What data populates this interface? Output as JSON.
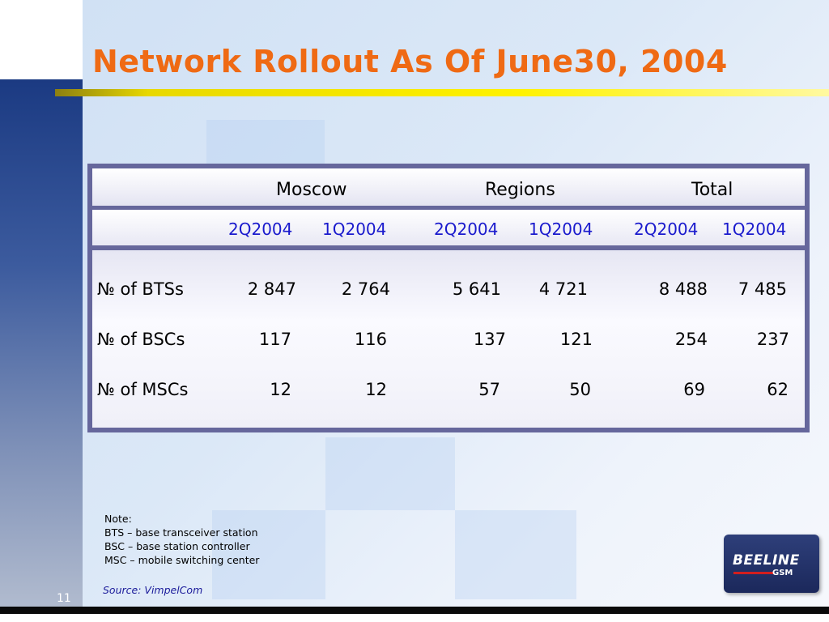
{
  "slide": {
    "title": "Network Rollout As Of June30, 2004",
    "page_number": "11"
  },
  "table": {
    "groups": [
      "Moscow",
      "Regions",
      "Total"
    ],
    "periods": [
      "2Q2004",
      "1Q2004",
      "2Q2004",
      "1Q2004",
      "2Q2004",
      "1Q2004"
    ],
    "rows": [
      {
        "label": "№ of BTSs",
        "values": [
          "2 847",
          "2 764",
          "5 641",
          "4 721",
          "8 488",
          "7 485"
        ]
      },
      {
        "label": "№ of BSCs",
        "values": [
          "117",
          "116",
          "137",
          "121",
          "254",
          "237"
        ]
      },
      {
        "label": "№ of MSCs",
        "values": [
          "12",
          "12",
          "57",
          "50",
          "69",
          "62"
        ]
      }
    ]
  },
  "note": {
    "heading": "Note:",
    "lines": [
      "BTS – base transceiver station",
      "BSC – base station controller",
      "MSC – mobile switching center"
    ]
  },
  "source": "Source: VimpelCom",
  "logo": {
    "text": "BEELINE",
    "sub": "GSM"
  },
  "colors": {
    "title": "#ef6a14",
    "period_header": "#1a1acd",
    "table_border": "#66679c",
    "rule": "#fff200"
  }
}
